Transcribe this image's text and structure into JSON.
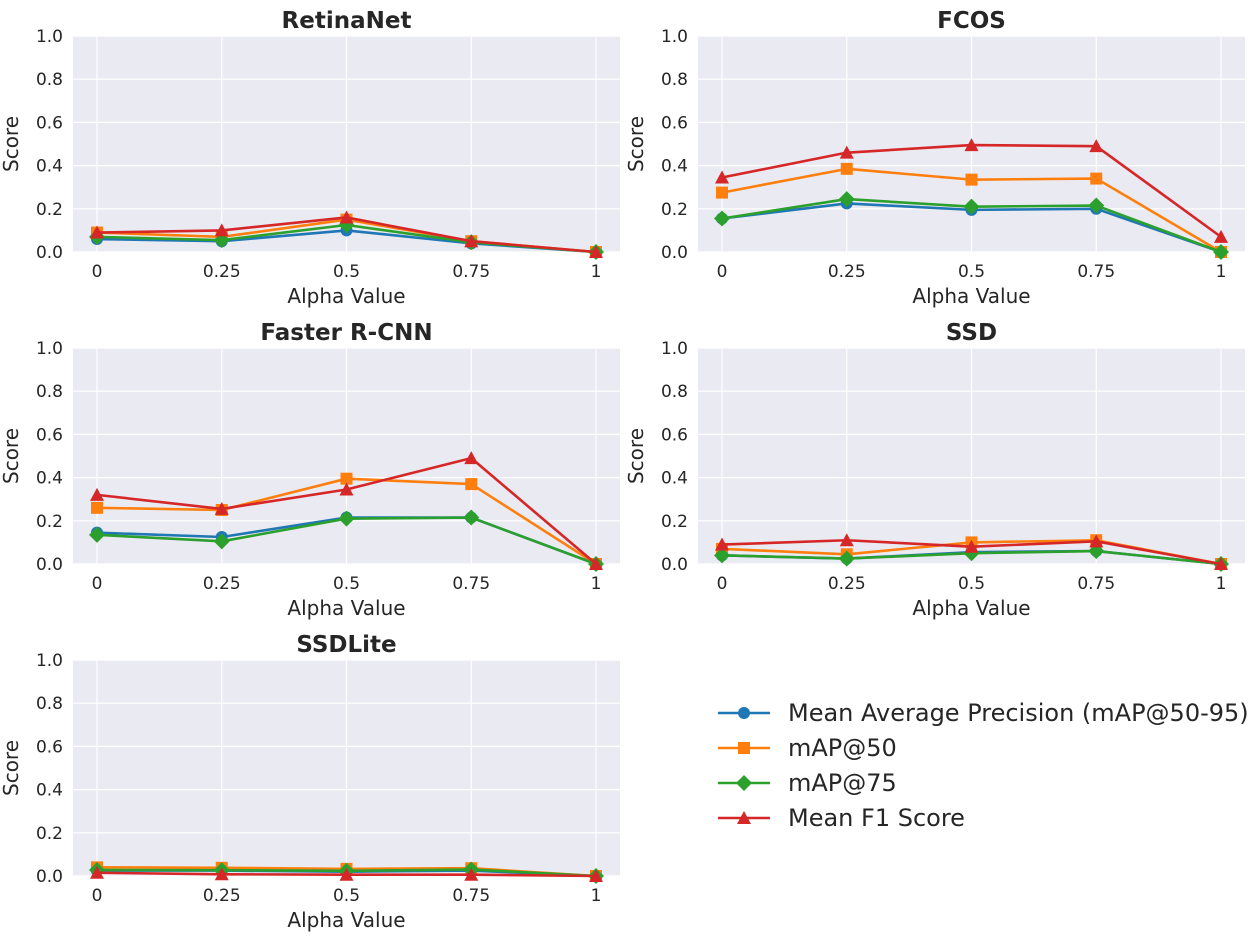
{
  "chart_data": [
    {
      "type": "line",
      "title": "RetinaNet",
      "xlabel": "Alpha Value",
      "ylabel": "Score",
      "x": [
        "0",
        "0.25",
        "0.5",
        "0.75",
        "1"
      ],
      "ylim": [
        0,
        1
      ],
      "yticks": [
        "0.0",
        "0.2",
        "0.4",
        "0.6",
        "0.8",
        "1.0"
      ],
      "grid": true,
      "series": [
        {
          "name": "Mean Average Precision (mAP@50-95)",
          "values": [
            0.06,
            0.05,
            0.1,
            0.04,
            0.0
          ]
        },
        {
          "name": "mAP@50",
          "values": [
            0.09,
            0.07,
            0.15,
            0.05,
            0.0
          ]
        },
        {
          "name": "mAP@75",
          "values": [
            0.07,
            0.055,
            0.125,
            0.045,
            0.0
          ]
        },
        {
          "name": "Mean F1 Score",
          "values": [
            0.09,
            0.1,
            0.16,
            0.05,
            0.0
          ]
        }
      ]
    },
    {
      "type": "line",
      "title": "FCOS",
      "xlabel": "Alpha Value",
      "ylabel": "Score",
      "x": [
        "0",
        "0.25",
        "0.5",
        "0.75",
        "1"
      ],
      "ylim": [
        0,
        1
      ],
      "yticks": [
        "0.0",
        "0.2",
        "0.4",
        "0.6",
        "0.8",
        "1.0"
      ],
      "grid": true,
      "series": [
        {
          "name": "Mean Average Precision (mAP@50-95)",
          "values": [
            0.155,
            0.225,
            0.195,
            0.2,
            0.0
          ]
        },
        {
          "name": "mAP@50",
          "values": [
            0.275,
            0.385,
            0.335,
            0.34,
            0.0
          ]
        },
        {
          "name": "mAP@75",
          "values": [
            0.155,
            0.245,
            0.21,
            0.215,
            0.0
          ]
        },
        {
          "name": "Mean F1 Score",
          "values": [
            0.345,
            0.46,
            0.495,
            0.49,
            0.07
          ]
        }
      ]
    },
    {
      "type": "line",
      "title": "Faster R-CNN",
      "xlabel": "Alpha Value",
      "ylabel": "Score",
      "x": [
        "0",
        "0.25",
        "0.5",
        "0.75",
        "1"
      ],
      "ylim": [
        0,
        1
      ],
      "yticks": [
        "0.0",
        "0.2",
        "0.4",
        "0.6",
        "0.8",
        "1.0"
      ],
      "grid": true,
      "series": [
        {
          "name": "Mean Average Precision (mAP@50-95)",
          "values": [
            0.145,
            0.125,
            0.215,
            0.215,
            0.0
          ]
        },
        {
          "name": "mAP@50",
          "values": [
            0.26,
            0.25,
            0.395,
            0.37,
            0.0
          ]
        },
        {
          "name": "mAP@75",
          "values": [
            0.135,
            0.105,
            0.21,
            0.215,
            0.0
          ]
        },
        {
          "name": "Mean F1 Score",
          "values": [
            0.32,
            0.255,
            0.345,
            0.49,
            0.0
          ]
        }
      ]
    },
    {
      "type": "line",
      "title": "SSD",
      "xlabel": "Alpha Value",
      "ylabel": "Score",
      "x": [
        "0",
        "0.25",
        "0.5",
        "0.75",
        "1"
      ],
      "ylim": [
        0,
        1
      ],
      "yticks": [
        "0.0",
        "0.2",
        "0.4",
        "0.6",
        "0.8",
        "1.0"
      ],
      "grid": true,
      "series": [
        {
          "name": "Mean Average Precision (mAP@50-95)",
          "values": [
            0.04,
            0.025,
            0.055,
            0.06,
            0.0
          ]
        },
        {
          "name": "mAP@50",
          "values": [
            0.07,
            0.045,
            0.1,
            0.11,
            0.0
          ]
        },
        {
          "name": "mAP@75",
          "values": [
            0.04,
            0.025,
            0.05,
            0.06,
            0.0
          ]
        },
        {
          "name": "Mean F1 Score",
          "values": [
            0.09,
            0.11,
            0.08,
            0.105,
            0.0
          ]
        }
      ]
    },
    {
      "type": "line",
      "title": "SSDLite",
      "xlabel": "Alpha Value",
      "ylabel": "Score",
      "x": [
        "0",
        "0.25",
        "0.5",
        "0.75",
        "1"
      ],
      "ylim": [
        0,
        1
      ],
      "yticks": [
        "0.0",
        "0.2",
        "0.4",
        "0.6",
        "0.8",
        "1.0"
      ],
      "grid": true,
      "series": [
        {
          "name": "Mean Average Precision (mAP@50-95)",
          "values": [
            0.025,
            0.025,
            0.02,
            0.025,
            0.0
          ]
        },
        {
          "name": "mAP@50",
          "values": [
            0.04,
            0.038,
            0.033,
            0.036,
            0.0
          ]
        },
        {
          "name": "mAP@75",
          "values": [
            0.028,
            0.027,
            0.024,
            0.03,
            0.0
          ]
        },
        {
          "name": "Mean F1 Score",
          "values": [
            0.015,
            0.008,
            0.006,
            0.006,
            0.0
          ]
        }
      ]
    }
  ],
  "legend": {
    "placement": "lower-right",
    "items": [
      {
        "label": "Mean Average Precision (mAP@50-95)",
        "color": "#1f77b4",
        "marker": "circle"
      },
      {
        "label": "mAP@50",
        "color": "#ff7f0e",
        "marker": "square"
      },
      {
        "label": "mAP@75",
        "color": "#2ca02c",
        "marker": "diamond"
      },
      {
        "label": "Mean F1 Score",
        "color": "#d62728",
        "marker": "triangle"
      }
    ]
  },
  "colors": {
    "plot_background": "#eaeaf2",
    "grid": "#ffffff",
    "text": "#262626"
  }
}
